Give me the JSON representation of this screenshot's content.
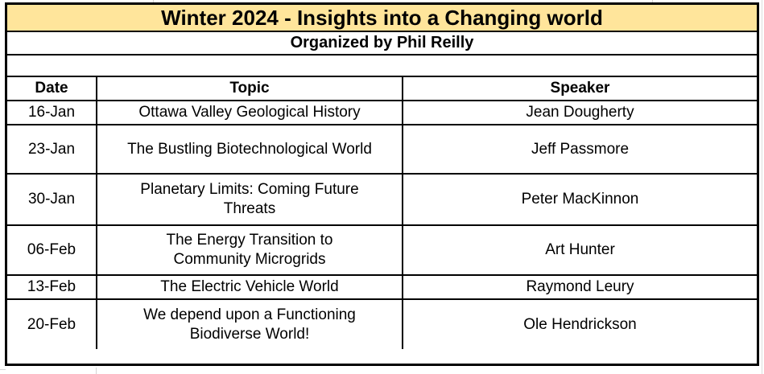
{
  "page": {
    "title": "Winter 2024 - Insights into a Changing world",
    "subtitle": "Organized by Phil Reilly"
  },
  "table": {
    "columns": [
      {
        "label": "Date"
      },
      {
        "label": "Topic"
      },
      {
        "label": "Speaker"
      }
    ],
    "rows": [
      {
        "date": "16-Jan",
        "topic": "Ottawa Valley Geological History",
        "speaker": "Jean Dougherty"
      },
      {
        "date": "23-Jan",
        "topic": "The Bustling Biotechnological World",
        "speaker": "Jeff Passmore"
      },
      {
        "date": "30-Jan",
        "topic": "Planetary Limits: Coming Future\nThreats",
        "speaker": "Peter MacKinnon"
      },
      {
        "date": "06-Feb",
        "topic": "The Energy Transition to\nCommunity Microgrids",
        "speaker": "Art Hunter"
      },
      {
        "date": "13-Feb",
        "topic": "The Electric Vehicle World",
        "speaker": "Raymond Leury"
      },
      {
        "date": "20-Feb",
        "topic": "We depend upon a Functioning\nBiodiverse World!",
        "speaker": "Ole Hendrickson"
      }
    ]
  },
  "colors": {
    "title_background": "#ffe59b",
    "table_border": "#000000",
    "sheet_gridline": "#d4d4d4"
  }
}
